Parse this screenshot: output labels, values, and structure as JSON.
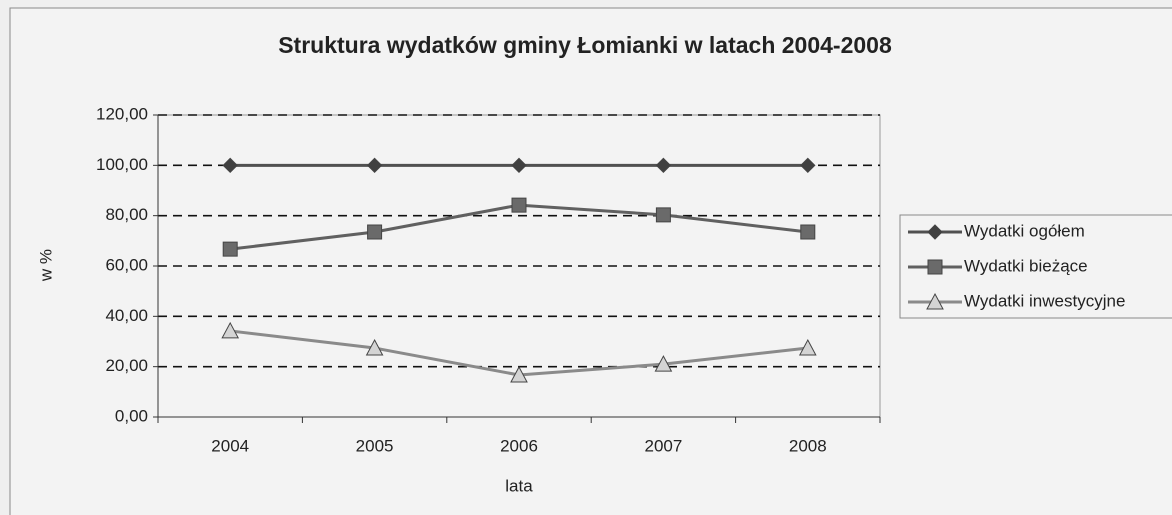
{
  "chart_data": {
    "type": "line",
    "title": "Struktura wydatków gminy Łomianki w latach 2004-2008",
    "x_label": "lata",
    "y_label": "w %",
    "categories": [
      "2004",
      "2005",
      "2006",
      "2007",
      "2008"
    ],
    "series": [
      {
        "name": "Wydatki ogółem",
        "color": "#505050",
        "marker": "diamond",
        "marker_color": "#404040",
        "values": [
          100,
          100,
          100,
          100,
          100
        ]
      },
      {
        "name": "Wydatki bieżące",
        "color": "#606060",
        "marker": "square",
        "marker_color": "#6a6a6a",
        "values": [
          66.7,
          73.5,
          84.2,
          80.3,
          73.5
        ]
      },
      {
        "name": "Wydatki inwestycyjne",
        "color": "#8a8a8a",
        "marker": "triangle",
        "marker_color": "#d4d4d4",
        "values": [
          34.2,
          27.4,
          16.7,
          21,
          27.4
        ]
      }
    ],
    "ylim": [
      0,
      120
    ],
    "yticks": [
      {
        "value": 0,
        "label": "0,00"
      },
      {
        "value": 20,
        "label": "20,00"
      },
      {
        "value": 40,
        "label": "40,00"
      },
      {
        "value": 60,
        "label": "60,00"
      },
      {
        "value": 80,
        "label": "80,00"
      },
      {
        "value": 100,
        "label": "100,00"
      },
      {
        "value": 120,
        "label": "120,00"
      }
    ],
    "grid": true,
    "legend": "right"
  }
}
